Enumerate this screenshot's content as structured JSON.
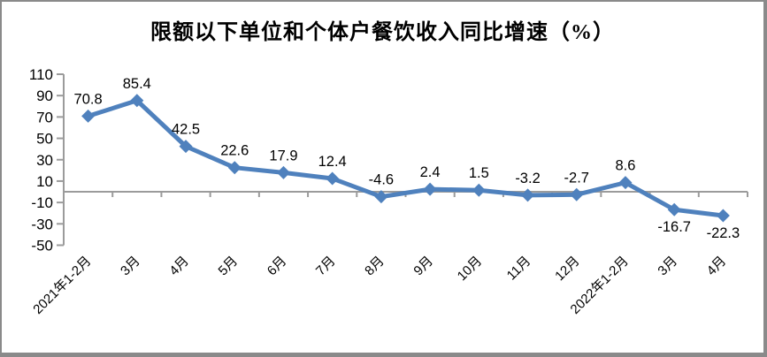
{
  "window": {
    "background_color": "#ffffff",
    "frame_border_color": "#8a8a8a"
  },
  "chart_data": {
    "type": "line",
    "title": "限额以下单位和个体户餐饮收入同比增速（%）",
    "categories": [
      "2021年1-2月",
      "3月",
      "4月",
      "5月",
      "6月",
      "7月",
      "8月",
      "9月",
      "10月",
      "11月",
      "12月",
      "2022年1-2月",
      "3月",
      "4月"
    ],
    "series": [
      {
        "name": "限额以下单位和个体户餐饮收入同比增速",
        "values": [
          70.8,
          85.4,
          42.5,
          22.6,
          17.9,
          12.4,
          -4.6,
          2.4,
          1.5,
          -3.2,
          -2.7,
          8.6,
          -16.7,
          -22.3
        ],
        "data_labels": [
          "70.8",
          "85.4",
          "42.5",
          "22.6",
          "17.9",
          "12.4",
          "-4.6",
          "2.4",
          "1.5",
          "-3.2",
          "-2.7",
          "8.6",
          "-16.7",
          "-22.3"
        ],
        "data_label_positions": [
          "above",
          "above",
          "above",
          "above",
          "above",
          "above",
          "above",
          "above",
          "above",
          "above",
          "above",
          "above",
          "below",
          "below"
        ],
        "color": "#4F81BD",
        "marker": "diamond"
      }
    ],
    "xlabel": "",
    "ylabel": "",
    "y_tick_labels": [
      "110",
      "90",
      "70",
      "50",
      "30",
      "10",
      "-10",
      "-30",
      "-50"
    ],
    "y_ticks": [
      110,
      90,
      70,
      50,
      30,
      10,
      -10,
      -30,
      -50
    ],
    "ylim": [
      -50,
      110
    ],
    "grid": false,
    "legend_position": "none",
    "axis_color": "#9b9b9b",
    "x_tick_rotation_deg": 45
  }
}
